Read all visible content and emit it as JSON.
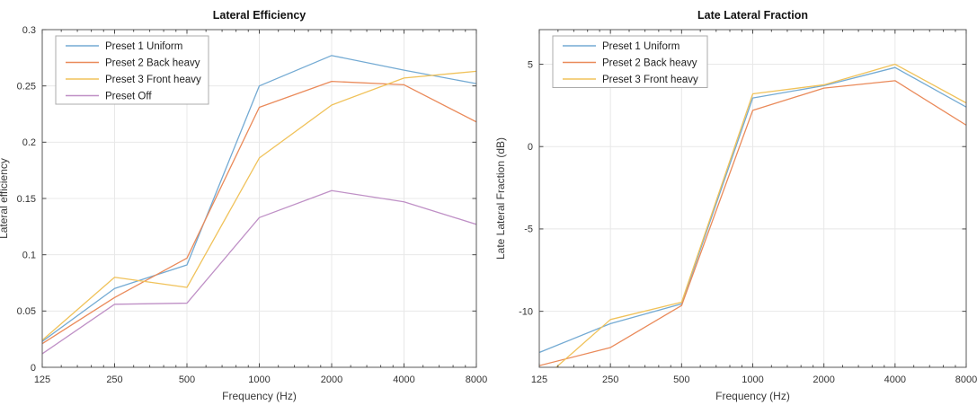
{
  "figure": {
    "background": "#ffffff",
    "grid_color": "#e8e8e8",
    "axis_box_color": "#5a5a5a",
    "tick_color": "#4a4a4a"
  },
  "chart_data": [
    {
      "id": "lateral-efficiency",
      "type": "line",
      "title": "Lateral Efficiency",
      "xlabel": "Frequency (Hz)",
      "ylabel": "Lateral efficiency",
      "x_scale": "log",
      "grid": true,
      "legend_position": "top-left",
      "categories": [
        125,
        250,
        500,
        1000,
        2000,
        4000,
        8000
      ],
      "x_tick_labels": [
        "125",
        "250",
        "500",
        "1000",
        "2000",
        "4000",
        "8000"
      ],
      "xlim": [
        125,
        8000
      ],
      "ylim": [
        0,
        0.3
      ],
      "y_ticks": [
        0,
        0.05,
        0.1,
        0.15,
        0.2,
        0.25,
        0.3
      ],
      "y_tick_labels": [
        "0",
        "0.05",
        "0.1",
        "0.15",
        "0.2",
        "0.25",
        "0.3"
      ],
      "series": [
        {
          "name": "Preset 1 Uniform",
          "color": "#73aad3",
          "values": [
            0.023,
            0.07,
            0.091,
            0.25,
            0.277,
            0.264,
            0.252
          ]
        },
        {
          "name": "Preset 2 Back heavy",
          "color": "#ea8a5a",
          "values": [
            0.021,
            0.062,
            0.097,
            0.231,
            0.254,
            0.251,
            0.218
          ]
        },
        {
          "name": "Preset 3 Front heavy",
          "color": "#f0c25a",
          "values": [
            0.024,
            0.08,
            0.071,
            0.186,
            0.233,
            0.257,
            0.263
          ]
        },
        {
          "name": "Preset Off",
          "color": "#bf90c6",
          "values": [
            0.012,
            0.056,
            0.057,
            0.133,
            0.157,
            0.147,
            0.127
          ]
        }
      ]
    },
    {
      "id": "late-lateral-fraction",
      "type": "line",
      "title": "Late Lateral Fraction",
      "xlabel": "Frequency (Hz)",
      "ylabel": "Late Lateral Fraction (dB)",
      "x_scale": "log",
      "grid": true,
      "legend_position": "top-left",
      "categories": [
        125,
        250,
        500,
        1000,
        2000,
        4000,
        8000
      ],
      "x_tick_labels": [
        "125",
        "250",
        "500",
        "1000",
        "2000",
        "4000",
        "8000"
      ],
      "xlim": [
        125,
        8000
      ],
      "ylim": [
        -13.4,
        7.1
      ],
      "y_ticks": [
        -10,
        -5,
        0,
        5
      ],
      "y_tick_labels": [
        "-10",
        "-5",
        "0",
        "5"
      ],
      "series": [
        {
          "name": "Preset 1 Uniform",
          "color": "#73aad3",
          "values": [
            -12.5,
            -10.75,
            -9.55,
            2.95,
            3.7,
            4.8,
            2.4
          ]
        },
        {
          "name": "Preset 2 Back heavy",
          "color": "#ea8a5a",
          "values": [
            -13.3,
            -12.2,
            -9.65,
            2.2,
            3.55,
            4.0,
            1.3
          ]
        },
        {
          "name": "Preset 3 Front heavy",
          "color": "#f0c25a",
          "values": [
            -14.3,
            -10.5,
            -9.45,
            3.2,
            3.75,
            5.0,
            2.65
          ]
        }
      ]
    }
  ]
}
